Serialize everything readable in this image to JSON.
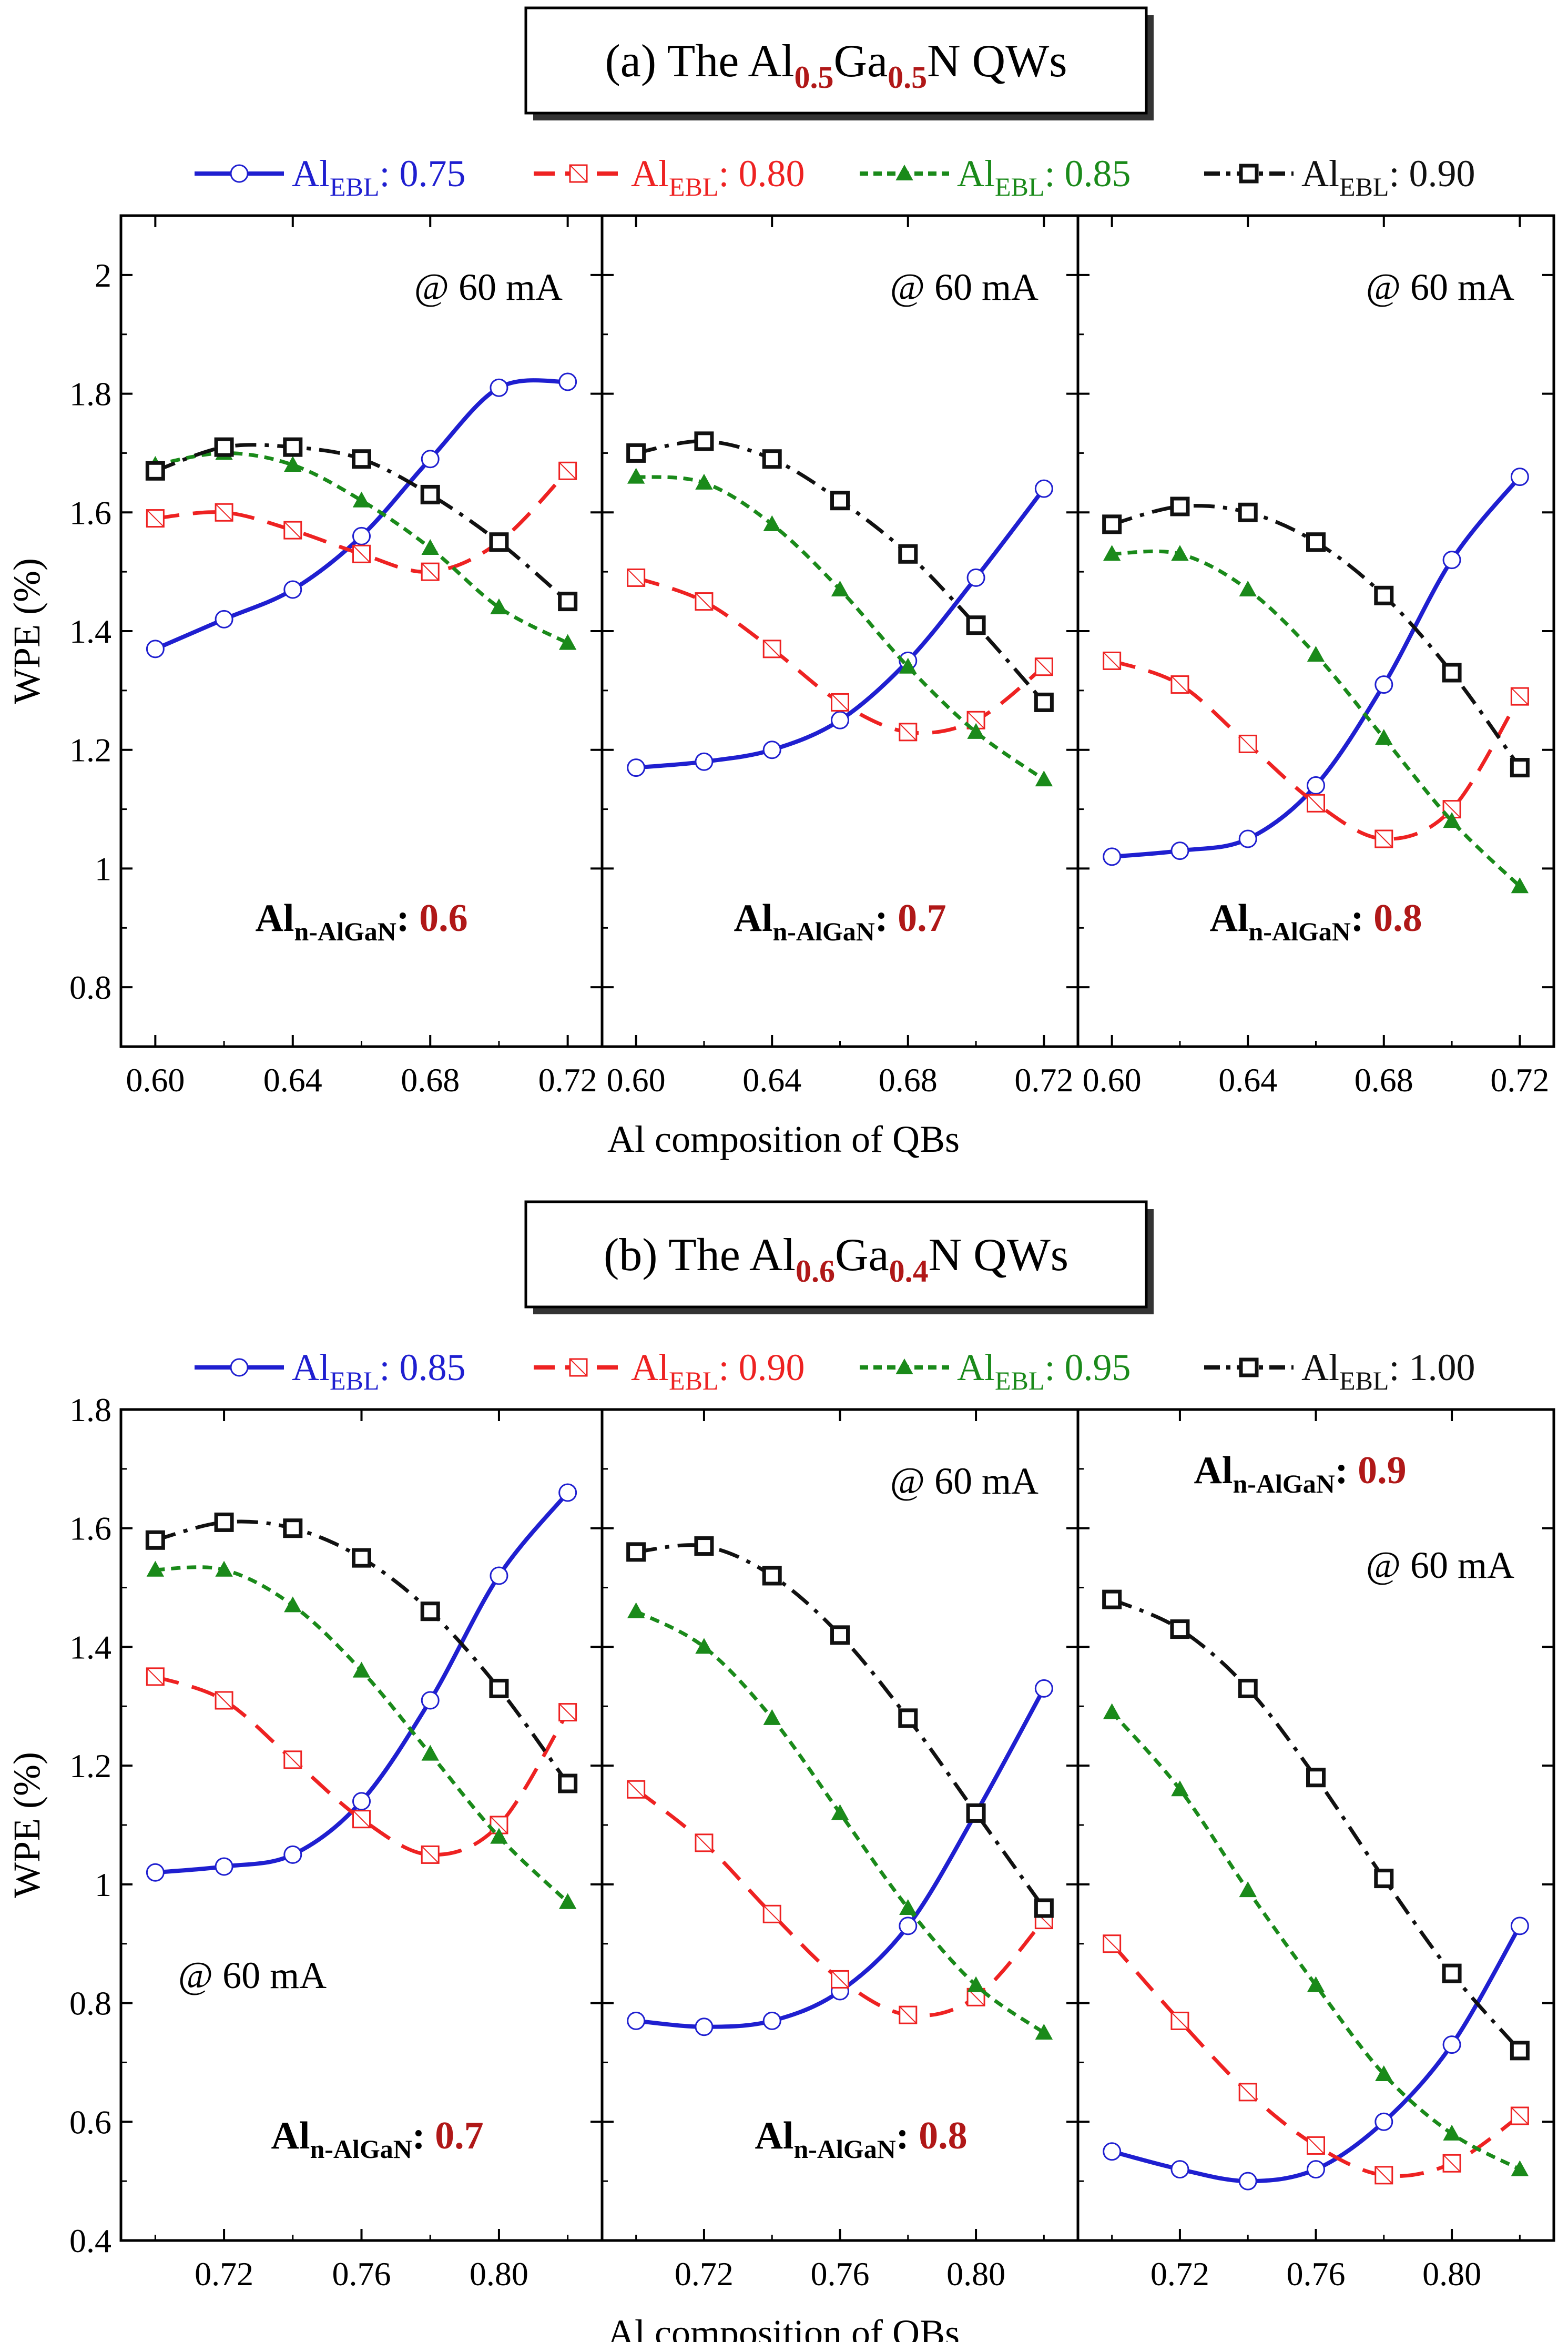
{
  "colors": {
    "blue": "#1f1fd0",
    "red": "#ee2222",
    "green": "#1a8a1a",
    "black": "#111111",
    "dark_red": "#b01818"
  },
  "figure": {
    "xlabel": "Al composition of QBs",
    "ylabel": "WPE (%)",
    "panels": [
      {
        "title_prefix": "(a) The Al",
        "title_sub1": "0.5",
        "title_mid": "Ga",
        "title_sub2": "0.5",
        "title_suffix": "N QWs",
        "ylim": [
          0.7,
          2.1
        ],
        "yticks": [
          "0.8",
          "1",
          "1.2",
          "1.4",
          "1.6",
          "1.8",
          "2"
        ],
        "xlim": [
          0.59,
          0.73
        ],
        "xticks": [
          "0.60",
          "0.64",
          "0.68",
          "0.72"
        ],
        "legend": [
          {
            "label": "Al",
            "sub": "EBL",
            "value": ": 0.75"
          },
          {
            "label": "Al",
            "sub": "EBL",
            "value": ": 0.80"
          },
          {
            "label": "Al",
            "sub": "EBL",
            "value": ": 0.85"
          },
          {
            "label": "Al",
            "sub": "EBL",
            "value": ": 0.90"
          }
        ]
      },
      {
        "title_prefix": "(b) The Al",
        "title_sub1": "0.6",
        "title_mid": "Ga",
        "title_sub2": "0.4",
        "title_suffix": "N QWs",
        "ylim": [
          0.4,
          1.8
        ],
        "yticks": [
          "0.4",
          "0.6",
          "0.8",
          "1",
          "1.2",
          "1.4",
          "1.6",
          "1.8"
        ],
        "xlim": [
          0.69,
          0.83
        ],
        "xticks": [
          "0.72",
          "0.76",
          "0.80"
        ],
        "legend": [
          {
            "label": "Al",
            "sub": "EBL",
            "value": ": 0.85"
          },
          {
            "label": "Al",
            "sub": "EBL",
            "value": ": 0.90"
          },
          {
            "label": "Al",
            "sub": "EBL",
            "value": ": 0.95"
          },
          {
            "label": "Al",
            "sub": "EBL",
            "value": ": 1.00"
          }
        ]
      }
    ]
  },
  "chart_data": [
    {
      "type": "line",
      "panel": "a",
      "subplot": 1,
      "annotation_current": "@ 60 mA",
      "annotation_al": {
        "label": "Al",
        "sub": "n-AlGaN",
        "value": "0.6"
      },
      "x": [
        0.6,
        0.62,
        0.64,
        0.66,
        0.68,
        0.7,
        0.72
      ],
      "ylim": [
        0.7,
        2.1
      ],
      "series": [
        {
          "name": "AlEBL: 0.75",
          "values": [
            1.37,
            1.42,
            1.47,
            1.56,
            1.69,
            1.81,
            1.82
          ]
        },
        {
          "name": "AlEBL: 0.80",
          "values": [
            1.59,
            1.6,
            1.57,
            1.53,
            1.5,
            1.55,
            1.67
          ]
        },
        {
          "name": "AlEBL: 0.85",
          "values": [
            1.68,
            1.7,
            1.68,
            1.62,
            1.54,
            1.44,
            1.38
          ]
        },
        {
          "name": "AlEBL: 0.90",
          "values": [
            1.67,
            1.71,
            1.71,
            1.69,
            1.63,
            1.55,
            1.45
          ]
        }
      ]
    },
    {
      "type": "line",
      "panel": "a",
      "subplot": 2,
      "annotation_current": "@ 60 mA",
      "annotation_al": {
        "label": "Al",
        "sub": "n-AlGaN",
        "value": "0.7"
      },
      "x": [
        0.6,
        0.62,
        0.64,
        0.66,
        0.68,
        0.7,
        0.72
      ],
      "ylim": [
        0.7,
        2.1
      ],
      "series": [
        {
          "name": "AlEBL: 0.75",
          "values": [
            1.17,
            1.18,
            1.2,
            1.25,
            1.35,
            1.49,
            1.64
          ]
        },
        {
          "name": "AlEBL: 0.80",
          "values": [
            1.49,
            1.45,
            1.37,
            1.28,
            1.23,
            1.25,
            1.34
          ]
        },
        {
          "name": "AlEBL: 0.85",
          "values": [
            1.66,
            1.65,
            1.58,
            1.47,
            1.34,
            1.23,
            1.15
          ]
        },
        {
          "name": "AlEBL: 0.90",
          "values": [
            1.7,
            1.72,
            1.69,
            1.62,
            1.53,
            1.41,
            1.28
          ]
        }
      ]
    },
    {
      "type": "line",
      "panel": "a",
      "subplot": 3,
      "annotation_current": "@ 60 mA",
      "annotation_al": {
        "label": "Al",
        "sub": "n-AlGaN",
        "value": "0.8"
      },
      "x": [
        0.6,
        0.62,
        0.64,
        0.66,
        0.68,
        0.7,
        0.72
      ],
      "ylim": [
        0.7,
        2.1
      ],
      "series": [
        {
          "name": "AlEBL: 0.75",
          "values": [
            1.02,
            1.03,
            1.05,
            1.14,
            1.31,
            1.52,
            1.66
          ]
        },
        {
          "name": "AlEBL: 0.80",
          "values": [
            1.35,
            1.31,
            1.21,
            1.11,
            1.05,
            1.1,
            1.29
          ]
        },
        {
          "name": "AlEBL: 0.85",
          "values": [
            1.53,
            1.53,
            1.47,
            1.36,
            1.22,
            1.08,
            0.97
          ]
        },
        {
          "name": "AlEBL: 0.90",
          "values": [
            1.58,
            1.61,
            1.6,
            1.55,
            1.46,
            1.33,
            1.17
          ]
        }
      ]
    },
    {
      "type": "line",
      "panel": "b",
      "subplot": 1,
      "annotation_current": "@ 60 mA",
      "annotation_al": {
        "label": "Al",
        "sub": "n-AlGaN",
        "value": "0.7"
      },
      "x": [
        0.7,
        0.72,
        0.74,
        0.76,
        0.78,
        0.8,
        0.82
      ],
      "ylim": [
        0.4,
        1.8
      ],
      "series": [
        {
          "name": "AlEBL: 0.85",
          "values": [
            1.02,
            1.03,
            1.05,
            1.14,
            1.31,
            1.52,
            1.66
          ]
        },
        {
          "name": "AlEBL: 0.90",
          "values": [
            1.35,
            1.31,
            1.21,
            1.11,
            1.05,
            1.1,
            1.29
          ]
        },
        {
          "name": "AlEBL: 0.95",
          "values": [
            1.53,
            1.53,
            1.47,
            1.36,
            1.22,
            1.08,
            0.97
          ]
        },
        {
          "name": "AlEBL: 1.00",
          "values": [
            1.58,
            1.61,
            1.6,
            1.55,
            1.46,
            1.33,
            1.17
          ]
        }
      ]
    },
    {
      "type": "line",
      "panel": "b",
      "subplot": 2,
      "annotation_current": "@ 60 mA",
      "annotation_al": {
        "label": "Al",
        "sub": "n-AlGaN",
        "value": "0.8"
      },
      "x": [
        0.7,
        0.72,
        0.74,
        0.76,
        0.78,
        0.8,
        0.82
      ],
      "ylim": [
        0.4,
        1.8
      ],
      "series": [
        {
          "name": "AlEBL: 0.85",
          "values": [
            0.77,
            0.76,
            0.77,
            0.82,
            0.93,
            1.12,
            1.33
          ]
        },
        {
          "name": "AlEBL: 0.90",
          "values": [
            1.16,
            1.07,
            0.95,
            0.84,
            0.78,
            0.81,
            0.94
          ]
        },
        {
          "name": "AlEBL: 0.95",
          "values": [
            1.46,
            1.4,
            1.28,
            1.12,
            0.96,
            0.83,
            0.75
          ]
        },
        {
          "name": "AlEBL: 1.00",
          "values": [
            1.56,
            1.57,
            1.52,
            1.42,
            1.28,
            1.12,
            0.96
          ]
        }
      ]
    },
    {
      "type": "line",
      "panel": "b",
      "subplot": 3,
      "annotation_current": "@ 60 mA",
      "annotation_al": {
        "label": "Al",
        "sub": "n-AlGaN",
        "value": "0.9"
      },
      "x": [
        0.7,
        0.72,
        0.74,
        0.76,
        0.78,
        0.8,
        0.82
      ],
      "ylim": [
        0.4,
        1.8
      ],
      "series": [
        {
          "name": "AlEBL: 0.85",
          "values": [
            0.55,
            0.52,
            0.5,
            0.52,
            0.6,
            0.73,
            0.93
          ]
        },
        {
          "name": "AlEBL: 0.90",
          "values": [
            0.9,
            0.77,
            0.65,
            0.56,
            0.51,
            0.53,
            0.61
          ]
        },
        {
          "name": "AlEBL: 0.95",
          "values": [
            1.29,
            1.16,
            0.99,
            0.83,
            0.68,
            0.58,
            0.52
          ]
        },
        {
          "name": "AlEBL: 1.00",
          "values": [
            1.48,
            1.43,
            1.33,
            1.18,
            1.01,
            0.85,
            0.72
          ]
        }
      ]
    }
  ]
}
